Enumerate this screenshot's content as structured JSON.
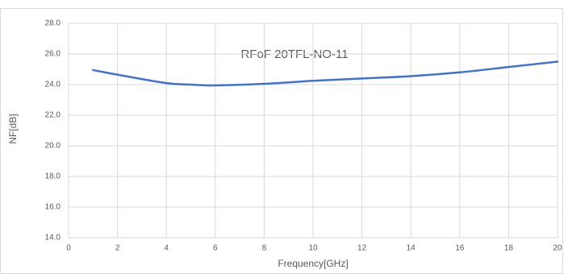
{
  "chart_data": {
    "type": "line",
    "title": "RFoF 20TFL-NO-11",
    "xlabel": "Frequency[GHz]",
    "ylabel": "NF[dB]",
    "series": [
      {
        "name": "RFoF 20TFL-NO-11",
        "color": "#4472c4",
        "x": [
          1,
          2,
          4,
          5,
          6,
          8,
          10,
          12,
          14,
          16,
          18,
          20
        ],
        "values": [
          24.95,
          24.65,
          24.1,
          24.0,
          23.95,
          24.05,
          24.25,
          24.4,
          24.55,
          24.8,
          25.15,
          25.5
        ]
      }
    ],
    "xlim": [
      0,
      20
    ],
    "xticks": [
      0,
      2,
      4,
      6,
      8,
      10,
      12,
      14,
      16,
      18,
      20
    ],
    "ylim": [
      14,
      28
    ],
    "yticks": [
      {
        "value": 14,
        "label": "14.0"
      },
      {
        "value": 16,
        "label": "16.0"
      },
      {
        "value": 18,
        "label": "18.0"
      },
      {
        "value": 20,
        "label": "20.0"
      },
      {
        "value": 22,
        "label": "22.0"
      },
      {
        "value": 24,
        "label": "24.0"
      },
      {
        "value": 26,
        "label": "26.0"
      },
      {
        "value": 28,
        "label": "28.0"
      }
    ],
    "grid": true
  }
}
